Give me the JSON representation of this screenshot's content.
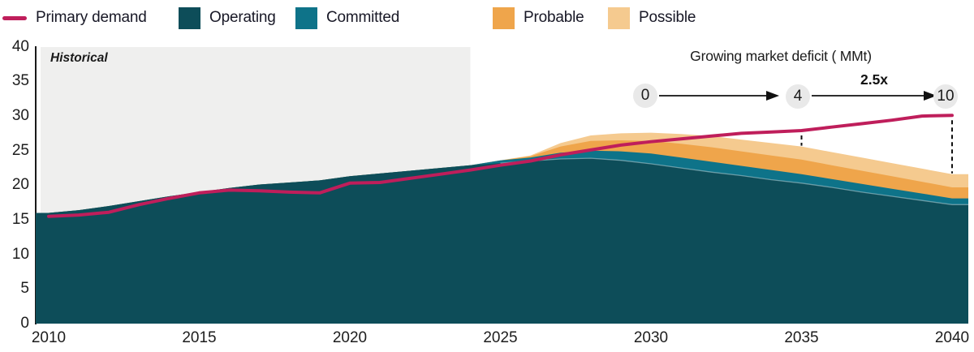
{
  "legend": {
    "items": [
      {
        "label": "Primary demand",
        "swatch": "line",
        "color": "#bf1e5b"
      },
      {
        "label": "Operating",
        "swatch": "box",
        "color": "#0d4d59"
      },
      {
        "label": "Committed",
        "swatch": "box",
        "color": "#0e7389"
      },
      {
        "label": "Probable",
        "swatch": "box",
        "color": "#efa54b"
      },
      {
        "label": "Possible",
        "swatch": "box",
        "color": "#f5ca8f"
      }
    ]
  },
  "historical_label": "Historical",
  "deficit_annotation": {
    "title": "Growing market deficit ( MMt)",
    "start_value": "0",
    "mid_value": "4",
    "end_value": "10",
    "multiplier_label": "2.5x"
  },
  "chart_data": {
    "type": "area",
    "x": [
      2010,
      2011,
      2012,
      2013,
      2014,
      2015,
      2016,
      2017,
      2018,
      2019,
      2020,
      2021,
      2022,
      2023,
      2024,
      2025,
      2026,
      2027,
      2028,
      2029,
      2030,
      2031,
      2032,
      2033,
      2034,
      2035,
      2036,
      2037,
      2038,
      2039,
      2040
    ],
    "series": [
      {
        "name": "Operating",
        "role": "stacked-area",
        "color": "#0d4d59",
        "values": [
          16.0,
          16.4,
          17.0,
          17.7,
          18.4,
          19.0,
          19.6,
          20.1,
          20.4,
          20.7,
          21.3,
          21.7,
          22.1,
          22.5,
          22.9,
          23.2,
          23.5,
          23.8,
          23.9,
          23.6,
          23.1,
          22.5,
          21.9,
          21.4,
          20.8,
          20.3,
          19.7,
          19.0,
          18.4,
          17.8,
          17.2
        ]
      },
      {
        "name": "Committed",
        "role": "stacked-area",
        "color": "#0e7389",
        "values": [
          0,
          0,
          0,
          0,
          0,
          0,
          0,
          0,
          0,
          0,
          0,
          0,
          0,
          0,
          0,
          0.4,
          0.5,
          0.9,
          1.1,
          1.3,
          1.5,
          1.5,
          1.5,
          1.4,
          1.4,
          1.3,
          1.2,
          1.2,
          1.1,
          1.0,
          0.9
        ]
      },
      {
        "name": "Probable",
        "role": "stacked-area",
        "color": "#efa54b",
        "values": [
          0,
          0,
          0,
          0,
          0,
          0,
          0,
          0,
          0,
          0,
          0,
          0,
          0,
          0,
          0,
          0,
          0.2,
          0.9,
          1.4,
          1.6,
          1.8,
          2.0,
          2.1,
          2.1,
          2.1,
          2.1,
          2.0,
          1.9,
          1.8,
          1.7,
          1.6
        ]
      },
      {
        "name": "Possible",
        "role": "stacked-area",
        "color": "#f5ca8f",
        "values": [
          0,
          0,
          0,
          0,
          0,
          0,
          0,
          0,
          0,
          0,
          0,
          0,
          0,
          0,
          0,
          0,
          0.1,
          0.5,
          0.8,
          1.0,
          1.2,
          1.4,
          1.6,
          1.7,
          1.8,
          1.9,
          1.9,
          1.9,
          1.9,
          1.9,
          1.9
        ]
      },
      {
        "name": "Primary demand",
        "role": "line",
        "color": "#bf1e5b",
        "values": [
          15.5,
          15.7,
          16.1,
          17.2,
          18.1,
          18.9,
          19.3,
          19.2,
          19.0,
          18.9,
          20.3,
          20.4,
          21.0,
          21.6,
          22.2,
          22.9,
          23.5,
          24.4,
          25.1,
          25.8,
          26.3,
          26.7,
          27.1,
          27.5,
          27.7,
          27.9,
          28.4,
          28.9,
          29.4,
          30.0,
          30.1
        ]
      }
    ],
    "ylim": [
      0,
      40
    ],
    "yticks": [
      0,
      5,
      10,
      15,
      20,
      25,
      30,
      35,
      40
    ],
    "xticks": [
      2010,
      2015,
      2020,
      2025,
      2030,
      2035,
      2040
    ],
    "historical_end_x": 2024,
    "deficit_marker_x": [
      2035,
      2040
    ],
    "grid": false,
    "legend_position": "top"
  },
  "colors": {
    "historical_bg": "#efefee",
    "axis_line": "#1a1a1a",
    "bubble_bg": "#e9e9e9",
    "arrow": "#111111"
  }
}
